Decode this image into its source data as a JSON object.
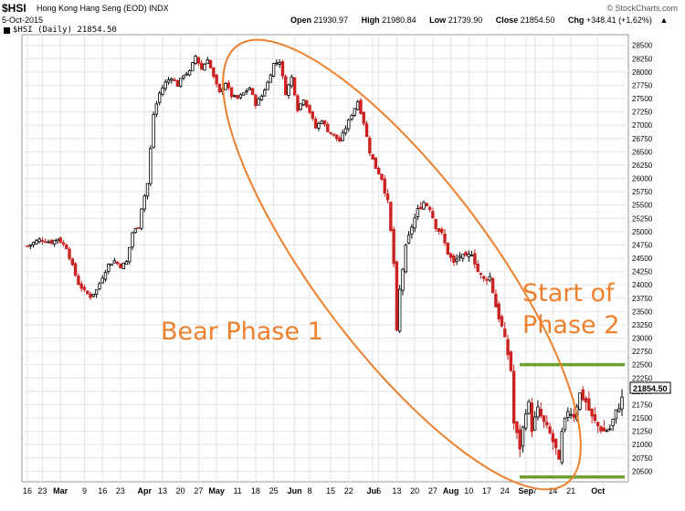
{
  "header": {
    "symbol": "$HSI",
    "company": "Hong Kong Hang Seng (EOD)  INDX",
    "date": "5-Oct-2015",
    "legend": "$HSI (Daily) 21854.50",
    "brand": "© StockCharts.com",
    "open_label": "Open",
    "open_value": "21930.97",
    "high_label": "High",
    "high_value": "21980.84",
    "low_label": "Low",
    "low_value": "21739.90",
    "close_label": "Close",
    "close_value": "21854.50",
    "chg_label": "Chg",
    "chg_value": "+348.41 (+1.62%)",
    "chg_arrow": "▲"
  },
  "colors": {
    "up": "#000000",
    "down": "#cc2222",
    "annotation": "#ee7f2d",
    "support": "#6f9f2c",
    "grid": "#e4e4e4"
  },
  "chart_data": {
    "type": "candlestick",
    "last_price_label": "21854.50",
    "ylim": [
      20300,
      28700
    ],
    "y_ticks": [
      20500,
      20750,
      21000,
      21250,
      21500,
      21750,
      22000,
      22250,
      22500,
      22750,
      23000,
      23250,
      23500,
      23750,
      24000,
      24250,
      24500,
      24750,
      25000,
      25250,
      25500,
      25750,
      26000,
      26250,
      26500,
      26750,
      27000,
      27250,
      27500,
      27750,
      28000,
      28250,
      28500
    ],
    "x_ticks": [
      {
        "label": "16",
        "day": 0
      },
      {
        "label": "23",
        "day": 5
      },
      {
        "label": "Mar",
        "day": 11,
        "bold": true
      },
      {
        "label": "9",
        "day": 19
      },
      {
        "label": "16",
        "day": 25
      },
      {
        "label": "23",
        "day": 31
      },
      {
        "label": "Apr",
        "day": 39,
        "bold": true
      },
      {
        "label": "13",
        "day": 45
      },
      {
        "label": "20",
        "day": 51
      },
      {
        "label": "27",
        "day": 57
      },
      {
        "label": "May",
        "day": 63,
        "bold": true
      },
      {
        "label": "11",
        "day": 70
      },
      {
        "label": "18",
        "day": 76
      },
      {
        "label": "25",
        "day": 82
      },
      {
        "label": "Jun",
        "day": 89,
        "bold": true
      },
      {
        "label": "8",
        "day": 94
      },
      {
        "label": "15",
        "day": 101
      },
      {
        "label": "22",
        "day": 107
      },
      {
        "label": "Jul",
        "day": 115,
        "bold": true
      },
      {
        "label": "6",
        "day": 117
      },
      {
        "label": "13",
        "day": 123
      },
      {
        "label": "20",
        "day": 129
      },
      {
        "label": "27",
        "day": 135
      },
      {
        "label": "Aug",
        "day": 141,
        "bold": true
      },
      {
        "label": "10",
        "day": 147
      },
      {
        "label": "17",
        "day": 153
      },
      {
        "label": "24",
        "day": 159
      },
      {
        "label": "Sep",
        "day": 166,
        "bold": true
      },
      {
        "label": "7",
        "day": 169
      },
      {
        "label": "14",
        "day": 175
      },
      {
        "label": "21",
        "day": 181
      },
      {
        "label": "Oct",
        "day": 190,
        "bold": true
      }
    ],
    "series_path": [
      [
        0,
        24730
      ],
      [
        4,
        24850
      ],
      [
        8,
        24800
      ],
      [
        10,
        24870
      ],
      [
        13,
        24700
      ],
      [
        15,
        24350
      ],
      [
        17,
        24020
      ],
      [
        19,
        23880
      ],
      [
        21,
        23780
      ],
      [
        23,
        23900
      ],
      [
        25,
        24150
      ],
      [
        27,
        24380
      ],
      [
        29,
        24450
      ],
      [
        31,
        24350
      ],
      [
        33,
        24430
      ],
      [
        35,
        24980
      ],
      [
        37,
        25100
      ],
      [
        38,
        25450
      ],
      [
        40,
        25900
      ],
      [
        41,
        26550
      ],
      [
        42,
        27200
      ],
      [
        44,
        27600
      ],
      [
        46,
        27800
      ],
      [
        48,
        27900
      ],
      [
        50,
        27750
      ],
      [
        52,
        27950
      ],
      [
        54,
        28000
      ],
      [
        56,
        28300
      ],
      [
        58,
        28050
      ],
      [
        60,
        28250
      ],
      [
        62,
        27900
      ],
      [
        64,
        27600
      ],
      [
        66,
        27800
      ],
      [
        68,
        27550
      ],
      [
        70,
        27500
      ],
      [
        72,
        27600
      ],
      [
        74,
        27700
      ],
      [
        76,
        27400
      ],
      [
        78,
        27550
      ],
      [
        80,
        27800
      ],
      [
        82,
        28150
      ],
      [
        84,
        28200
      ],
      [
        86,
        27600
      ],
      [
        88,
        27900
      ],
      [
        90,
        27300
      ],
      [
        92,
        27500
      ],
      [
        94,
        27250
      ],
      [
        96,
        26950
      ],
      [
        98,
        27100
      ],
      [
        100,
        26900
      ],
      [
        102,
        26800
      ],
      [
        104,
        26700
      ],
      [
        106,
        26950
      ],
      [
        108,
        27200
      ],
      [
        110,
        27450
      ],
      [
        112,
        27050
      ],
      [
        114,
        26500
      ],
      [
        116,
        26200
      ],
      [
        118,
        26000
      ],
      [
        120,
        25550
      ],
      [
        121,
        25000
      ],
      [
        122,
        24400
      ],
      [
        123,
        23100
      ],
      [
        124,
        23900
      ],
      [
        126,
        24700
      ],
      [
        128,
        25100
      ],
      [
        130,
        25400
      ],
      [
        132,
        25550
      ],
      [
        134,
        25450
      ],
      [
        136,
        25100
      ],
      [
        138,
        24950
      ],
      [
        140,
        24600
      ],
      [
        142,
        24400
      ],
      [
        144,
        24550
      ],
      [
        146,
        24500
      ],
      [
        148,
        24600
      ],
      [
        150,
        24250
      ],
      [
        152,
        24100
      ],
      [
        154,
        24150
      ],
      [
        156,
        23600
      ],
      [
        158,
        23200
      ],
      [
        160,
        22700
      ],
      [
        161,
        22400
      ],
      [
        162,
        21400
      ],
      [
        164,
        20950
      ],
      [
        166,
        21650
      ],
      [
        167,
        21750
      ],
      [
        168,
        21300
      ],
      [
        170,
        21650
      ],
      [
        172,
        21400
      ],
      [
        174,
        21200
      ],
      [
        176,
        20900
      ],
      [
        177,
        20650
      ],
      [
        178,
        21200
      ],
      [
        180,
        21650
      ],
      [
        182,
        21550
      ],
      [
        184,
        21950
      ],
      [
        186,
        21800
      ],
      [
        188,
        21500
      ],
      [
        190,
        21350
      ],
      [
        192,
        21250
      ],
      [
        194,
        21300
      ],
      [
        196,
        21600
      ],
      [
        198,
        21854
      ]
    ],
    "annotations": [
      {
        "text": "Bear Phase 1"
      },
      {
        "text": "Start of"
      },
      {
        "text": "Phase 2"
      }
    ],
    "support_levels": [
      22500,
      20390
    ]
  }
}
